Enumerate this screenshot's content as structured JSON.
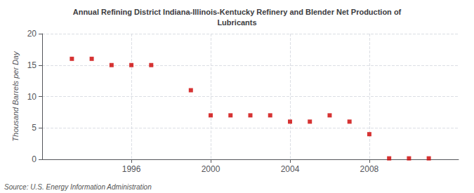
{
  "chart_data": {
    "type": "scatter",
    "title": "Annual Refining District Indiana-Illinois-Kentucky Refinery and Blender Net Production of\nLubricants",
    "ylabel": "Thousand Barrels per Day",
    "annotations": [
      "Source: U.S. Energy Information Administration"
    ],
    "x": [
      1993,
      1994,
      1995,
      1996,
      1997,
      1999,
      2000,
      2001,
      2002,
      2003,
      2004,
      2005,
      2006,
      2007,
      2008,
      2009,
      2010,
      2011
    ],
    "values": [
      16,
      16,
      15,
      15,
      15,
      11,
      7,
      7,
      7,
      7,
      6,
      6,
      7,
      6,
      4,
      0.15,
      0.15,
      0.15
    ],
    "color": "#cc0000",
    "marker": "square",
    "xlim": [
      1991.5,
      2012.5
    ],
    "xticks": [
      1996,
      2000,
      2004,
      2008
    ],
    "ylim": [
      0,
      20
    ],
    "yticks": [
      0,
      5,
      10,
      15,
      20
    ],
    "grid": true
  }
}
